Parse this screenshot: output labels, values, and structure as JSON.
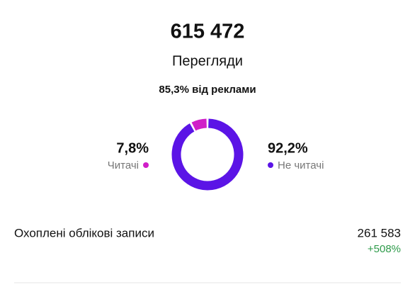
{
  "header": {
    "views": "615 472",
    "views_label": "Перегляди",
    "ads_share": "85,3% від реклами"
  },
  "chart_data": {
    "type": "donut",
    "categories": [
      "Читачі",
      "Не читачі"
    ],
    "values": [
      7.8,
      92.2
    ],
    "value_labels": [
      "7,8%",
      "92,2%"
    ],
    "colors": [
      "#d01ec8",
      "#5b14e6"
    ]
  },
  "reach": {
    "label": "Охоплені облікові записи",
    "value": "261 583",
    "change": "+508%"
  }
}
